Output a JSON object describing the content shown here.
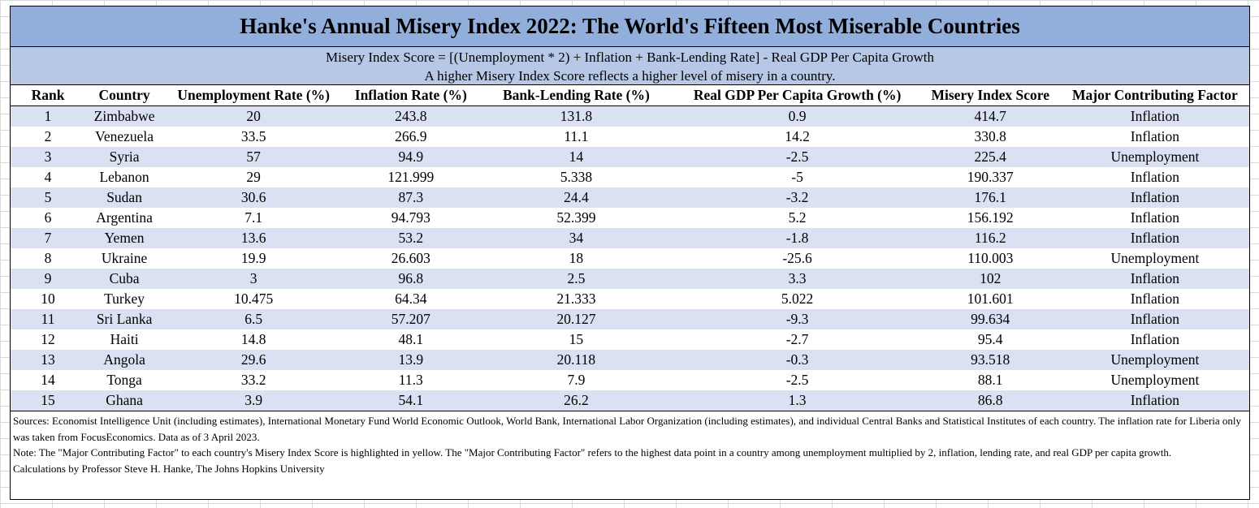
{
  "title": "Hanke's Annual Misery Index 2022: The World's Fifteen Most Miserable Countries",
  "formula": "Misery Index Score = [(Unemployment * 2) + Inflation + Bank-Lending Rate] - Real GDP Per Capita Growth",
  "subtitle": "A higher Misery Index Score reflects a higher level of misery in a country.",
  "headers": [
    "Rank",
    "Country",
    "Unemployment Rate (%)",
    "Inflation Rate (%)",
    "Bank-Lending Rate (%)",
    "Real GDP Per Capita Growth (%)",
    "Misery Index Score",
    "Major Contributing Factor"
  ],
  "rows": [
    [
      "1",
      "Zimbabwe",
      "20",
      "243.8",
      "131.8",
      "0.9",
      "414.7",
      "Inflation"
    ],
    [
      "2",
      "Venezuela",
      "33.5",
      "266.9",
      "11.1",
      "14.2",
      "330.8",
      "Inflation"
    ],
    [
      "3",
      "Syria",
      "57",
      "94.9",
      "14",
      "-2.5",
      "225.4",
      "Unemployment"
    ],
    [
      "4",
      "Lebanon",
      "29",
      "121.999",
      "5.338",
      "-5",
      "190.337",
      "Inflation"
    ],
    [
      "5",
      "Sudan",
      "30.6",
      "87.3",
      "24.4",
      "-3.2",
      "176.1",
      "Inflation"
    ],
    [
      "6",
      "Argentina",
      "7.1",
      "94.793",
      "52.399",
      "5.2",
      "156.192",
      "Inflation"
    ],
    [
      "7",
      "Yemen",
      "13.6",
      "53.2",
      "34",
      "-1.8",
      "116.2",
      "Inflation"
    ],
    [
      "8",
      "Ukraine",
      "19.9",
      "26.603",
      "18",
      "-25.6",
      "110.003",
      "Unemployment"
    ],
    [
      "9",
      "Cuba",
      "3",
      "96.8",
      "2.5",
      "3.3",
      "102",
      "Inflation"
    ],
    [
      "10",
      "Turkey",
      "10.475",
      "64.34",
      "21.333",
      "5.022",
      "101.601",
      "Inflation"
    ],
    [
      "11",
      "Sri Lanka",
      "6.5",
      "57.207",
      "20.127",
      "-9.3",
      "99.634",
      "Inflation"
    ],
    [
      "12",
      "Haiti",
      "14.8",
      "48.1",
      "15",
      "-2.7",
      "95.4",
      "Inflation"
    ],
    [
      "13",
      "Angola",
      "29.6",
      "13.9",
      "20.118",
      "-0.3",
      "93.518",
      "Unemployment"
    ],
    [
      "14",
      "Tonga",
      "33.2",
      "11.3",
      "7.9",
      "-2.5",
      "88.1",
      "Unemployment"
    ],
    [
      "15",
      "Ghana",
      "3.9",
      "54.1",
      "26.2",
      "1.3",
      "86.8",
      "Inflation"
    ]
  ],
  "notes": [
    "Sources: Economist Intelligence Unit (including estimates), International Monetary Fund World Economic Outlook, World Bank, International Labor Organization (including estimates), and individual Central Banks and Statistical Institutes of each country. The inflation rate for Liberia only was taken from FocusEconomics. Data as of 3 April 2023.",
    "Note: The \"Major Contributing Factor\" to each country's Misery Index Score is highlighted in yellow. The \"Major Contributing Factor\" refers to the highest data point in a country among unemployment multiplied by 2, inflation, lending rate, and real GDP per capita growth.",
    "Calculations by Professor Steve H. Hanke, The Johns Hopkins University"
  ],
  "colors": {
    "title_band": "#92aedb",
    "formula_band": "#b7c8e6",
    "row_stripe": "#d9e1f2"
  }
}
